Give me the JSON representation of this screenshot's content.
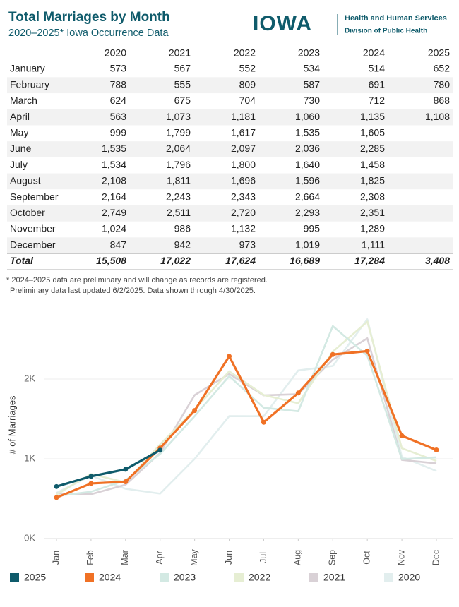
{
  "header": {
    "title": "Total Marriages by Month",
    "subtitle": "2020–2025* Iowa Occurrence Data",
    "logo": "IOWA",
    "agency": "Health and Human Services",
    "division": "Division of Public Health"
  },
  "table": {
    "columns": [
      "2020",
      "2021",
      "2022",
      "2023",
      "2024",
      "2025"
    ],
    "rows": [
      {
        "label": "January",
        "cells": [
          "573",
          "567",
          "552",
          "534",
          "514",
          "652"
        ]
      },
      {
        "label": "February",
        "cells": [
          "788",
          "555",
          "809",
          "587",
          "691",
          "780"
        ]
      },
      {
        "label": "March",
        "cells": [
          "624",
          "675",
          "704",
          "730",
          "712",
          "868"
        ]
      },
      {
        "label": "April",
        "cells": [
          "563",
          "1,073",
          "1,181",
          "1,060",
          "1,135",
          "1,108"
        ]
      },
      {
        "label": "May",
        "cells": [
          "999",
          "1,799",
          "1,617",
          "1,535",
          "1,605"
        ]
      },
      {
        "label": "June",
        "cells": [
          "1,535",
          "2,064",
          "2,097",
          "2,036",
          "2,285"
        ]
      },
      {
        "label": "July",
        "cells": [
          "1,534",
          "1,796",
          "1,800",
          "1,640",
          "1,458"
        ]
      },
      {
        "label": "August",
        "cells": [
          "2,108",
          "1,811",
          "1,696",
          "1,596",
          "1,825"
        ]
      },
      {
        "label": "September",
        "cells": [
          "2,164",
          "2,243",
          "2,343",
          "2,664",
          "2,308"
        ]
      },
      {
        "label": "October",
        "cells": [
          "2,749",
          "2,511",
          "2,720",
          "2,293",
          "2,351"
        ]
      },
      {
        "label": "November",
        "cells": [
          "1,024",
          "986",
          "1,132",
          "995",
          "1,289"
        ]
      },
      {
        "label": "December",
        "cells": [
          "847",
          "942",
          "973",
          "1,019",
          "1,111"
        ]
      }
    ],
    "total": {
      "label": "Total",
      "cells": [
        "15,508",
        "17,022",
        "17,624",
        "16,689",
        "17,284",
        "3,408"
      ]
    }
  },
  "notes": [
    "* 2024–2025 data are preliminary and will change as records are registered.",
    "Preliminary data last updated 6/2/2025. Data shown through 4/30/2025."
  ],
  "chart_data": {
    "type": "line",
    "y_label": "# of Marriages",
    "categories": [
      "Jan",
      "Feb",
      "Mar",
      "Apr",
      "May",
      "Jun",
      "Jul",
      "Aug",
      "Sep",
      "Oct",
      "Nov",
      "Dec"
    ],
    "ylim": [
      0,
      2850
    ],
    "yticks": [
      {
        "value": 0,
        "label": "0K"
      },
      {
        "value": 1000,
        "label": "1K"
      },
      {
        "value": 2000,
        "label": "2K"
      }
    ],
    "grid": true,
    "legend": "bottom",
    "series": [
      {
        "name": "2025",
        "color": "#0f5b6b",
        "highlight": true,
        "values": [
          652,
          780,
          868,
          1108,
          null,
          null,
          null,
          null,
          null,
          null,
          null,
          null
        ]
      },
      {
        "name": "2024",
        "color": "#f07125",
        "highlight": true,
        "values": [
          514,
          691,
          712,
          1135,
          1605,
          2285,
          1458,
          1825,
          2308,
          2351,
          1289,
          1111
        ]
      },
      {
        "name": "2023",
        "color": "#d3e9e3",
        "highlight": false,
        "values": [
          534,
          587,
          730,
          1060,
          1535,
          2036,
          1640,
          1596,
          2664,
          2293,
          995,
          1019
        ]
      },
      {
        "name": "2022",
        "color": "#e6eed3",
        "highlight": false,
        "values": [
          552,
          809,
          704,
          1181,
          1617,
          2097,
          1800,
          1696,
          2343,
          2720,
          1132,
          973
        ]
      },
      {
        "name": "2021",
        "color": "#d9d1d6",
        "highlight": false,
        "values": [
          567,
          555,
          675,
          1073,
          1799,
          2064,
          1796,
          1811,
          2243,
          2511,
          986,
          942
        ]
      },
      {
        "name": "2020",
        "color": "#e2eeee",
        "highlight": false,
        "values": [
          573,
          788,
          624,
          563,
          999,
          1535,
          1534,
          2108,
          2164,
          2749,
          1024,
          847
        ]
      }
    ]
  }
}
